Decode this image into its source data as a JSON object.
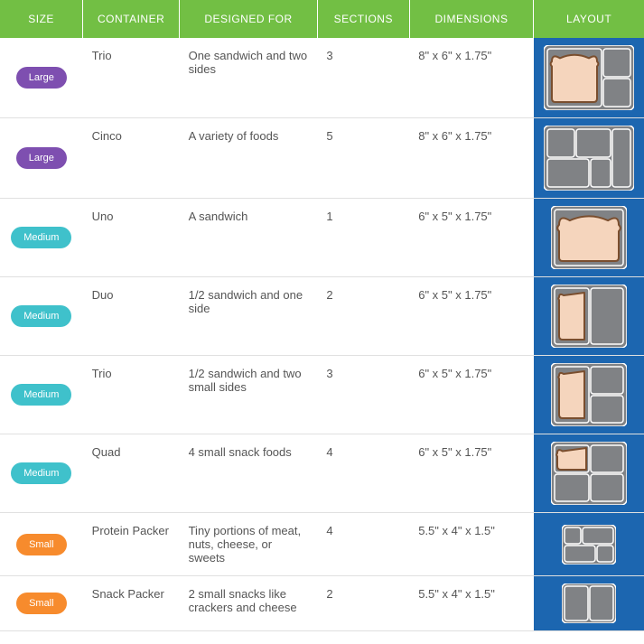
{
  "colors": {
    "header_bg": "#72bf44",
    "header_text": "#ffffff",
    "layout_col_bg": "#1c66b0",
    "border": "#e0e0e0",
    "body_text": "#555555",
    "pill_large": "#7e4fb0",
    "pill_medium": "#3fc1cb",
    "pill_small": "#f78b2d",
    "tray_outer": "#808285",
    "tray_border": "#ffffff",
    "bread_fill": "#f5d5bd",
    "bread_crust": "#7a4e2e"
  },
  "columns": [
    {
      "key": "size",
      "label": "SIZE"
    },
    {
      "key": "container",
      "label": "CONTAINER"
    },
    {
      "key": "designed",
      "label": "DESIGNED FOR"
    },
    {
      "key": "sections",
      "label": "SECTIONS"
    },
    {
      "key": "dims",
      "label": "DIMENSIONS"
    },
    {
      "key": "layout",
      "label": "LAYOUT"
    }
  ],
  "rows": [
    {
      "size_label": "Large",
      "pill_color": "#7e4fb0",
      "container": "Trio",
      "designed": "One sandwich and two sides",
      "sections": "3",
      "dims": "8\" x 6\" x 1.75\"",
      "layout_w": 100,
      "layout_h": 72,
      "compartments": [
        {
          "x": 4,
          "y": 4,
          "w": 60,
          "h": 64,
          "bread": true,
          "half": false
        },
        {
          "x": 66,
          "y": 4,
          "w": 30,
          "h": 31
        },
        {
          "x": 66,
          "y": 37,
          "w": 30,
          "h": 31
        }
      ]
    },
    {
      "size_label": "Large",
      "pill_color": "#7e4fb0",
      "container": "Cinco",
      "designed": "A variety of foods",
      "sections": "5",
      "dims": "8\" x 6\" x 1.75\"",
      "layout_w": 100,
      "layout_h": 72,
      "compartments": [
        {
          "x": 4,
          "y": 4,
          "w": 30,
          "h": 31
        },
        {
          "x": 36,
          "y": 4,
          "w": 38,
          "h": 31
        },
        {
          "x": 76,
          "y": 4,
          "w": 20,
          "h": 64
        },
        {
          "x": 4,
          "y": 37,
          "w": 46,
          "h": 31
        },
        {
          "x": 52,
          "y": 37,
          "w": 22,
          "h": 31
        }
      ]
    },
    {
      "size_label": "Medium",
      "pill_color": "#3fc1cb",
      "container": "Uno",
      "designed": "A sandwich",
      "sections": "1",
      "dims": "6\" x 5\" x 1.75\"",
      "layout_w": 84,
      "layout_h": 70,
      "compartments": [
        {
          "x": 4,
          "y": 4,
          "w": 76,
          "h": 62,
          "bread": true,
          "half": false
        }
      ]
    },
    {
      "size_label": "Medium",
      "pill_color": "#3fc1cb",
      "container": "Duo",
      "designed": "1/2 sandwich and one side",
      "sections": "2",
      "dims": "6\" x 5\" x 1.75\"",
      "layout_w": 84,
      "layout_h": 70,
      "compartments": [
        {
          "x": 4,
          "y": 4,
          "w": 38,
          "h": 62,
          "bread": true,
          "half": true
        },
        {
          "x": 44,
          "y": 4,
          "w": 36,
          "h": 62
        }
      ]
    },
    {
      "size_label": "Medium",
      "pill_color": "#3fc1cb",
      "container": "Trio",
      "designed": "1/2 sandwich and two small sides",
      "sections": "3",
      "dims": "6\" x 5\" x 1.75\"",
      "layout_w": 84,
      "layout_h": 70,
      "compartments": [
        {
          "x": 4,
          "y": 4,
          "w": 38,
          "h": 62,
          "bread": true,
          "half": true
        },
        {
          "x": 44,
          "y": 4,
          "w": 36,
          "h": 30
        },
        {
          "x": 44,
          "y": 36,
          "w": 36,
          "h": 30
        }
      ]
    },
    {
      "size_label": "Medium",
      "pill_color": "#3fc1cb",
      "container": "Quad",
      "designed": "4 small snack foods",
      "sections": "4",
      "dims": "6\" x 5\" x 1.75\"",
      "layout_w": 84,
      "layout_h": 70,
      "compartments": [
        {
          "x": 4,
          "y": 4,
          "w": 38,
          "h": 30,
          "bread": true,
          "half": true,
          "small": true
        },
        {
          "x": 44,
          "y": 4,
          "w": 36,
          "h": 30
        },
        {
          "x": 4,
          "y": 36,
          "w": 38,
          "h": 30
        },
        {
          "x": 44,
          "y": 36,
          "w": 36,
          "h": 30
        }
      ]
    },
    {
      "size_label": "Small",
      "pill_color": "#f78b2d",
      "container": "Protein Packer",
      "designed": "Tiny portions of meat, nuts, cheese, or sweets",
      "sections": "4",
      "dims": "5.5\" x 4\" x 1.5\"",
      "layout_w": 60,
      "layout_h": 44,
      "compartments": [
        {
          "x": 3,
          "y": 3,
          "w": 18,
          "h": 18
        },
        {
          "x": 23,
          "y": 3,
          "w": 34,
          "h": 18
        },
        {
          "x": 3,
          "y": 23,
          "w": 34,
          "h": 18
        },
        {
          "x": 39,
          "y": 23,
          "w": 18,
          "h": 18
        }
      ]
    },
    {
      "size_label": "Small",
      "pill_color": "#f78b2d",
      "container": "Snack Packer",
      "designed": "2 small snacks like crackers and cheese",
      "sections": "2",
      "dims": "5.5\" x 4\" x 1.5\"",
      "layout_w": 60,
      "layout_h": 44,
      "compartments": [
        {
          "x": 3,
          "y": 3,
          "w": 26,
          "h": 38
        },
        {
          "x": 31,
          "y": 3,
          "w": 26,
          "h": 38
        }
      ]
    }
  ]
}
